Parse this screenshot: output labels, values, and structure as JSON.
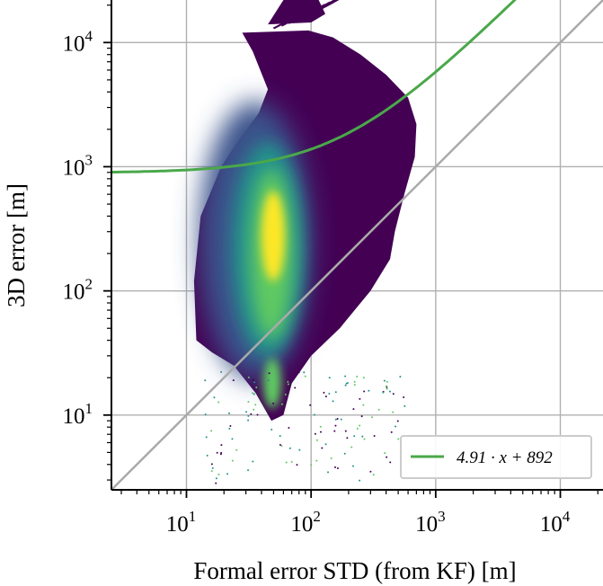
{
  "chart_data": {
    "type": "scatter",
    "subtype": "density-colored log-log scatter",
    "xlabel": "Formal error STD (from KF) [m]",
    "ylabel": "3D error [m]",
    "xscale": "log",
    "yscale": "log",
    "xlim": [
      2.5,
      22000
    ],
    "ylim": [
      2.5,
      22000
    ],
    "x_ticks": [
      {
        "base": "10",
        "exp": "1"
      },
      {
        "base": "10",
        "exp": "2"
      },
      {
        "base": "10",
        "exp": "3"
      },
      {
        "base": "10",
        "exp": "4"
      }
    ],
    "y_ticks": [
      {
        "base": "10",
        "exp": "1"
      },
      {
        "base": "10",
        "exp": "2"
      },
      {
        "base": "10",
        "exp": "3"
      },
      {
        "base": "10",
        "exp": "4"
      }
    ],
    "grid": true,
    "colormap": "viridis",
    "colors": {
      "fit_line": "#4aa84a",
      "reference_line": "#aaaaaa",
      "grid": "#b0b0b0",
      "low_density": "#440154",
      "high_density": "#fde725"
    },
    "reference_line": {
      "equation": "y = x"
    },
    "fit": {
      "slope": 4.91,
      "intercept": 892,
      "label": "4.91 · x + 892"
    },
    "legend": {
      "position": "lower-right",
      "entries": [
        "4.91 · x + 892"
      ]
    },
    "density_core": {
      "x_center": 48,
      "y_center": 300
    }
  }
}
